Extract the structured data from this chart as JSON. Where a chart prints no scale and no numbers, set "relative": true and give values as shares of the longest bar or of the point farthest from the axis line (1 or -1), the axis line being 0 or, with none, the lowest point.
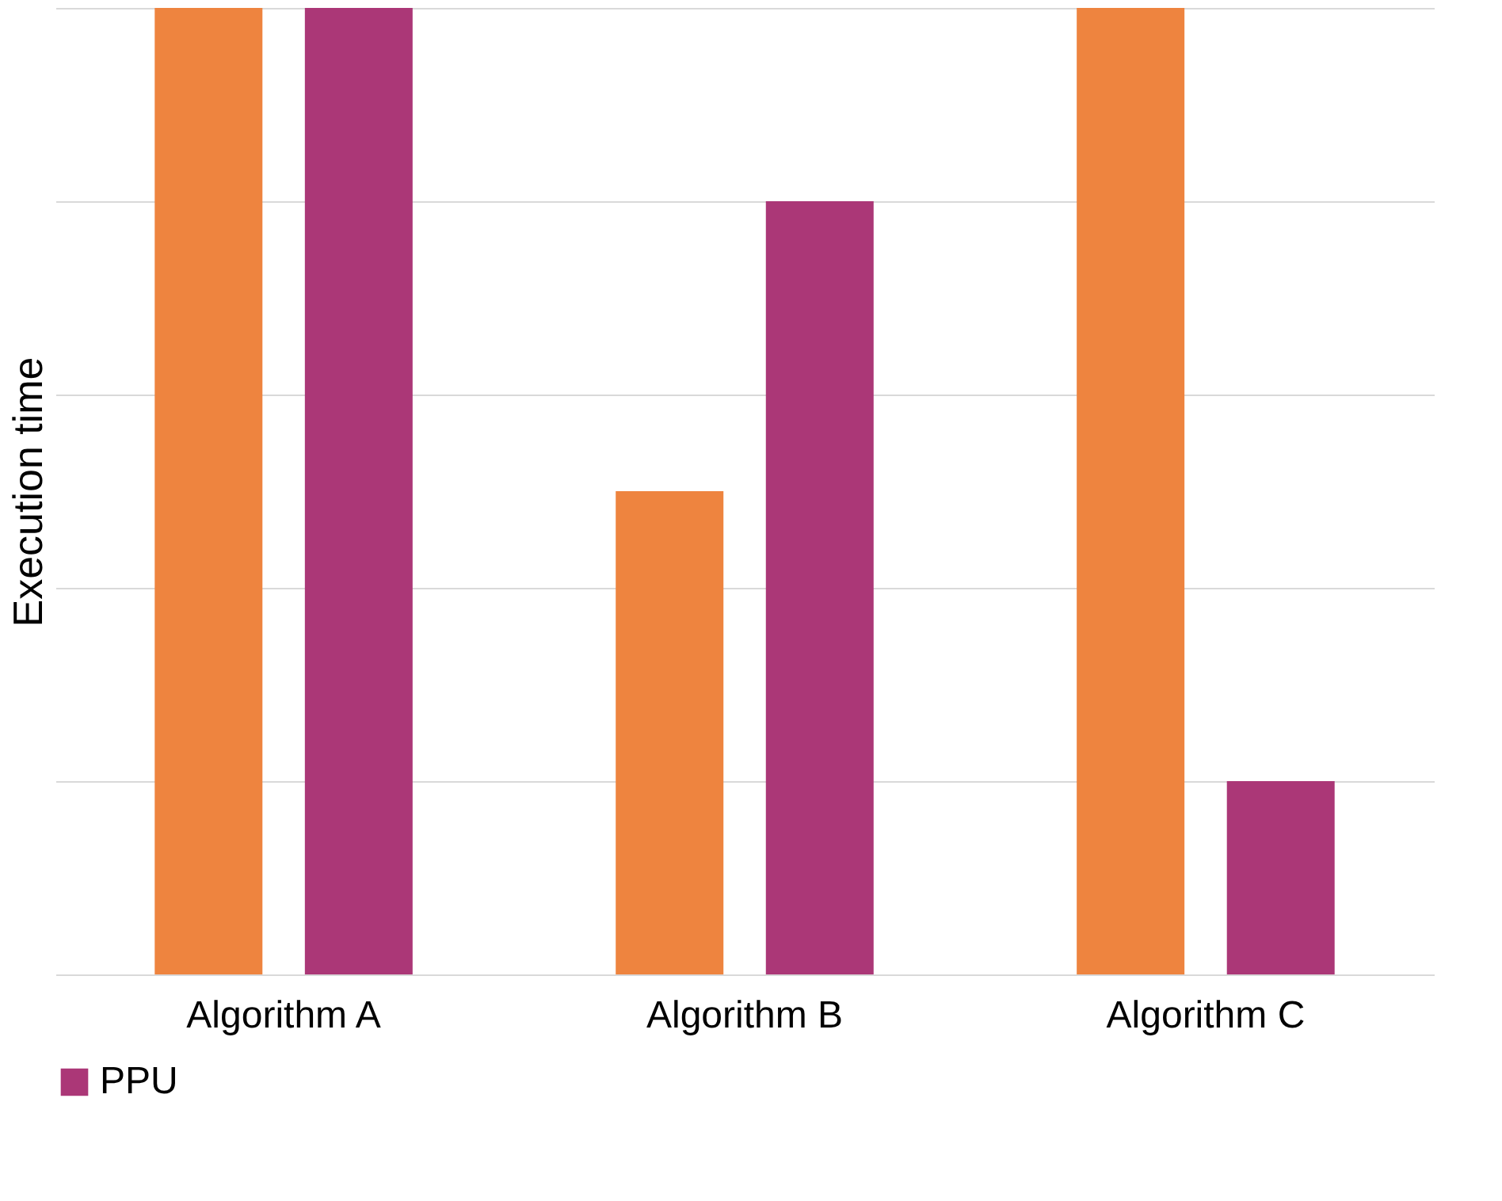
{
  "chart_data": {
    "type": "bar",
    "ylabel": "Execution time",
    "relative": true,
    "categories": [
      "Algorithm A",
      "Algorithm B",
      "Algorithm C"
    ],
    "series": [
      {
        "color": "#ee843f",
        "values": [
          1,
          0.5,
          1
        ]
      },
      {
        "name": "PPU",
        "color": "#ab3777",
        "values": [
          1,
          0.8,
          0.2
        ]
      }
    ],
    "grid": "y",
    "legend": "bottom"
  }
}
